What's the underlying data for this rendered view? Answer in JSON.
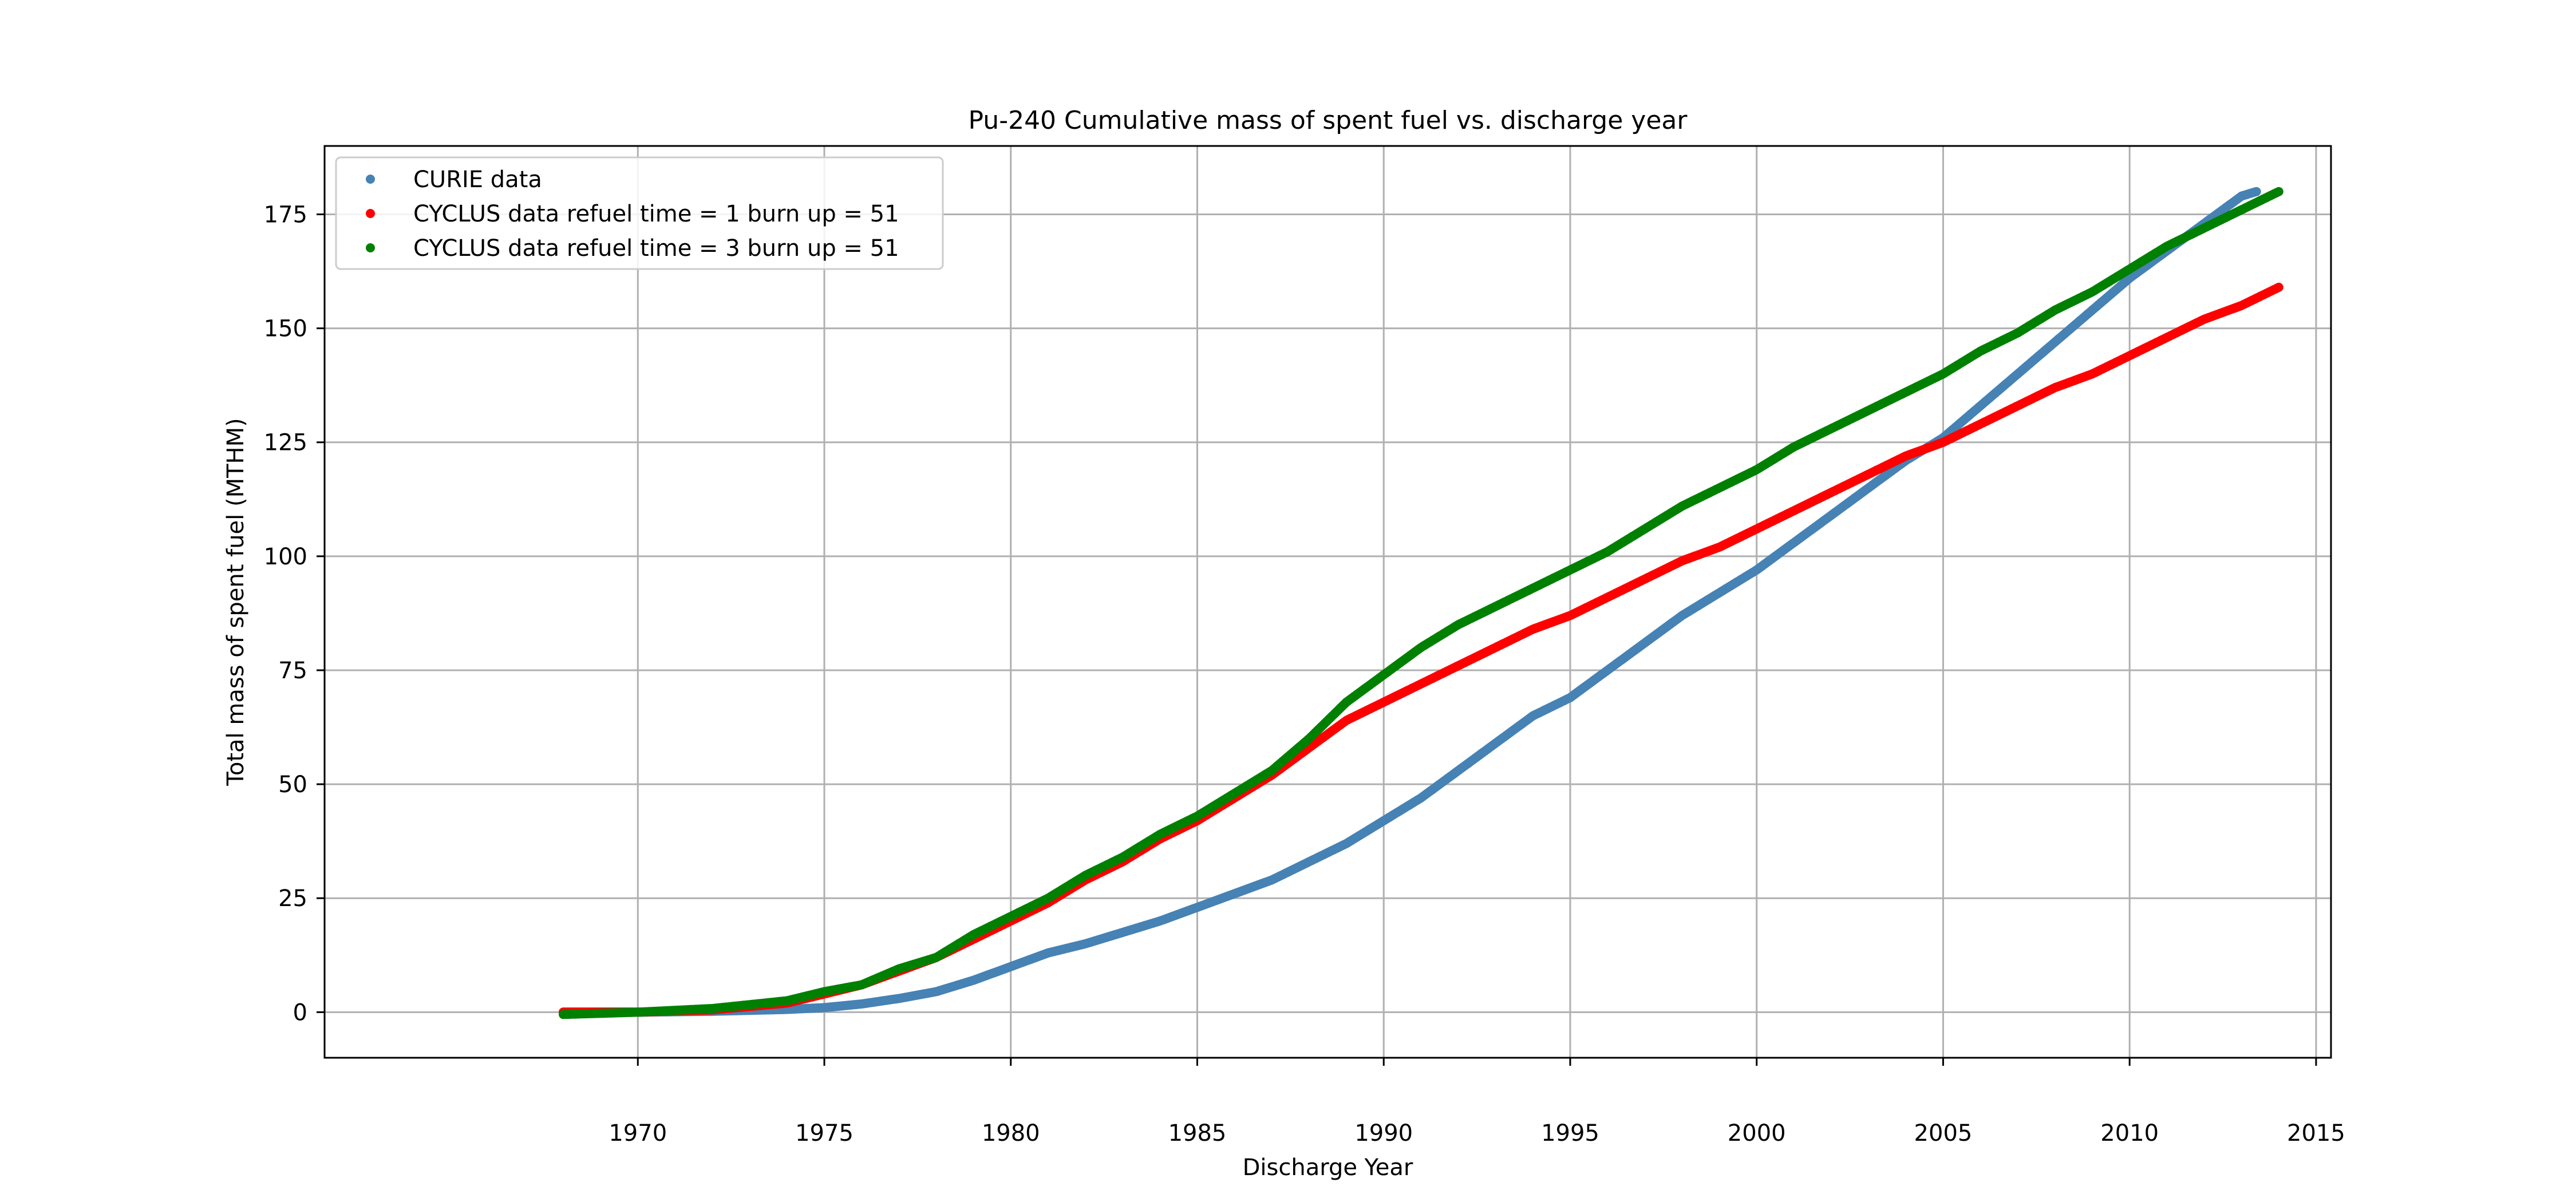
{
  "chart_data": {
    "type": "scatter",
    "title": "Pu-240 Cumulative mass of spent fuel vs. discharge year",
    "xlabel": "Discharge Year",
    "ylabel": "Total mass of spent fuel (MTHM)",
    "xlim": [
      1961.6,
      2015.4
    ],
    "ylim": [
      -10,
      190
    ],
    "xticks": [
      1970,
      1975,
      1980,
      1985,
      1990,
      1995,
      2000,
      2005,
      2010,
      2015
    ],
    "yticks": [
      0,
      25,
      50,
      75,
      100,
      125,
      150,
      175
    ],
    "grid": true,
    "legend_position": "upper-left",
    "series": [
      {
        "name": "CURIE data",
        "color": "#4682b4",
        "points": [
          [
            1968,
            0
          ],
          [
            1970,
            0
          ],
          [
            1972,
            0.2
          ],
          [
            1974,
            0.6
          ],
          [
            1975,
            1
          ],
          [
            1976,
            1.8
          ],
          [
            1977,
            3
          ],
          [
            1978,
            4.5
          ],
          [
            1979,
            7
          ],
          [
            1980,
            10
          ],
          [
            1981,
            13
          ],
          [
            1982,
            15
          ],
          [
            1983,
            17.5
          ],
          [
            1984,
            20
          ],
          [
            1985,
            23
          ],
          [
            1986,
            26
          ],
          [
            1987,
            29
          ],
          [
            1988,
            33
          ],
          [
            1989,
            37
          ],
          [
            1990,
            42
          ],
          [
            1991,
            47
          ],
          [
            1992,
            53
          ],
          [
            1993,
            59
          ],
          [
            1994,
            65
          ],
          [
            1995,
            69
          ],
          [
            1996,
            75
          ],
          [
            1997,
            81
          ],
          [
            1998,
            87
          ],
          [
            1999,
            92
          ],
          [
            2000,
            97
          ],
          [
            2001,
            103
          ],
          [
            2002,
            109
          ],
          [
            2003,
            115
          ],
          [
            2004,
            121
          ],
          [
            2005,
            126
          ],
          [
            2006,
            133
          ],
          [
            2007,
            140
          ],
          [
            2008,
            147
          ],
          [
            2009,
            154
          ],
          [
            2010,
            161
          ],
          [
            2011,
            167
          ],
          [
            2012,
            173
          ],
          [
            2013,
            179
          ],
          [
            2013.4,
            180
          ]
        ]
      },
      {
        "name": "CYCLUS data refuel time = 1 burn up = 51",
        "color": "#ff0000",
        "points": [
          [
            1968,
            0
          ],
          [
            1970,
            0
          ],
          [
            1972,
            0.5
          ],
          [
            1974,
            2
          ],
          [
            1975,
            4
          ],
          [
            1976,
            6
          ],
          [
            1977,
            9
          ],
          [
            1978,
            12
          ],
          [
            1979,
            16
          ],
          [
            1980,
            20
          ],
          [
            1981,
            24
          ],
          [
            1982,
            29
          ],
          [
            1983,
            33
          ],
          [
            1984,
            38
          ],
          [
            1985,
            42
          ],
          [
            1986,
            47
          ],
          [
            1987,
            52
          ],
          [
            1988,
            58
          ],
          [
            1989,
            64
          ],
          [
            1990,
            68
          ],
          [
            1991,
            72
          ],
          [
            1992,
            76
          ],
          [
            1993,
            80
          ],
          [
            1994,
            84
          ],
          [
            1995,
            87
          ],
          [
            1996,
            91
          ],
          [
            1997,
            95
          ],
          [
            1998,
            99
          ],
          [
            1999,
            102
          ],
          [
            2000,
            106
          ],
          [
            2001,
            110
          ],
          [
            2002,
            114
          ],
          [
            2003,
            118
          ],
          [
            2004,
            122
          ],
          [
            2005,
            125
          ],
          [
            2006,
            129
          ],
          [
            2007,
            133
          ],
          [
            2008,
            137
          ],
          [
            2009,
            140
          ],
          [
            2010,
            144
          ],
          [
            2011,
            148
          ],
          [
            2012,
            152
          ],
          [
            2013,
            155
          ],
          [
            2014,
            159
          ]
        ]
      },
      {
        "name": "CYCLUS data refuel time = 3 burn up = 51",
        "color": "#008000",
        "points": [
          [
            1968,
            -0.5
          ],
          [
            1970,
            0
          ],
          [
            1972,
            0.8
          ],
          [
            1974,
            2.5
          ],
          [
            1975,
            4.5
          ],
          [
            1976,
            6
          ],
          [
            1977,
            9.5
          ],
          [
            1978,
            12
          ],
          [
            1979,
            17
          ],
          [
            1980,
            21
          ],
          [
            1981,
            25
          ],
          [
            1982,
            30
          ],
          [
            1983,
            34
          ],
          [
            1984,
            39
          ],
          [
            1985,
            43
          ],
          [
            1986,
            48
          ],
          [
            1987,
            53
          ],
          [
            1988,
            60
          ],
          [
            1989,
            68
          ],
          [
            1990,
            74
          ],
          [
            1991,
            80
          ],
          [
            1992,
            85
          ],
          [
            1993,
            89
          ],
          [
            1994,
            93
          ],
          [
            1995,
            97
          ],
          [
            1996,
            101
          ],
          [
            1997,
            106
          ],
          [
            1998,
            111
          ],
          [
            1999,
            115
          ],
          [
            2000,
            119
          ],
          [
            2001,
            124
          ],
          [
            2002,
            128
          ],
          [
            2003,
            132
          ],
          [
            2004,
            136
          ],
          [
            2005,
            140
          ],
          [
            2006,
            145
          ],
          [
            2007,
            149
          ],
          [
            2008,
            154
          ],
          [
            2009,
            158
          ],
          [
            2010,
            163
          ],
          [
            2011,
            168
          ],
          [
            2012,
            172
          ],
          [
            2013,
            176
          ],
          [
            2014,
            180
          ]
        ]
      }
    ]
  }
}
